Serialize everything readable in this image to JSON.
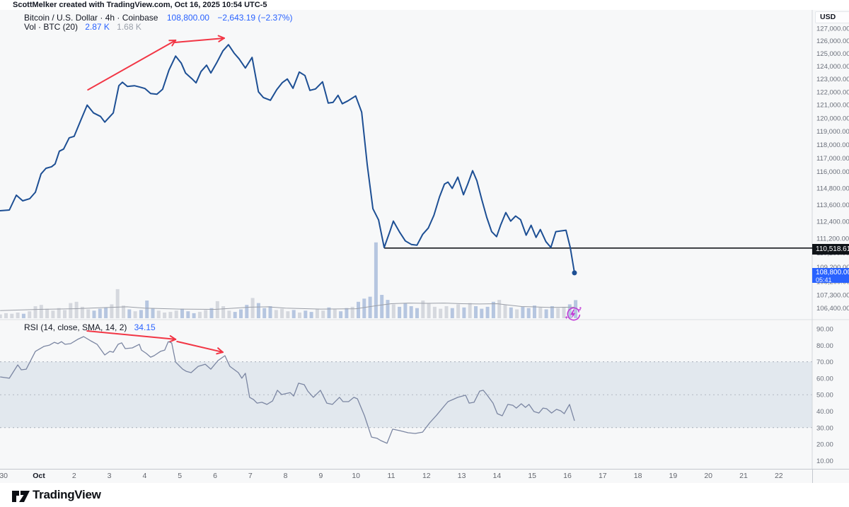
{
  "attribution": "ScottMelker created with TradingView.com, Oct 16, 2025 10:54 UTC-5",
  "symbol_header": {
    "title": "Bitcoin / U.S. Dollar · 4h · Coinbase",
    "price": "108,800.00",
    "change": "−2,643.19 (−2.37%)",
    "vol_label": "Vol · BTC (20)",
    "vol_value": "2.87 K",
    "vol_ma_value": "1.68 K"
  },
  "rsi_header": {
    "label": "RSI (14, close, SMA, 14, 2)",
    "value": "34.15"
  },
  "price_axis": {
    "currency": "USD",
    "line_label": "110,518.61",
    "last_label": "108,800.00",
    "countdown": "05:41"
  },
  "time_axis": [
    {
      "label": "30",
      "day": 0
    },
    {
      "label": "Oct",
      "day": 1,
      "bold": true
    },
    {
      "label": "2",
      "day": 2
    },
    {
      "label": "3",
      "day": 3
    },
    {
      "label": "4",
      "day": 4
    },
    {
      "label": "5",
      "day": 5
    },
    {
      "label": "6",
      "day": 6
    },
    {
      "label": "7",
      "day": 7
    },
    {
      "label": "8",
      "day": 8
    },
    {
      "label": "9",
      "day": 9
    },
    {
      "label": "10",
      "day": 10
    },
    {
      "label": "11",
      "day": 11
    },
    {
      "label": "12",
      "day": 12
    },
    {
      "label": "13",
      "day": 13
    },
    {
      "label": "14",
      "day": 14
    },
    {
      "label": "15",
      "day": 15
    },
    {
      "label": "16",
      "day": 16
    },
    {
      "label": "17",
      "day": 17
    },
    {
      "label": "18",
      "day": 18
    },
    {
      "label": "19",
      "day": 19
    },
    {
      "label": "20",
      "day": 20
    },
    {
      "label": "21",
      "day": 21
    },
    {
      "label": "22",
      "day": 22
    }
  ],
  "logo_text": "TradingView",
  "colors": {
    "accent_blue": "#2962FF",
    "price_line": "#1d4f94",
    "red_arrow": "#f23645",
    "rsi_line": "#7b86a2",
    "band_fill": "#9db1c7",
    "dash_line": "#a7adb8",
    "vol_up": "#d5d8de",
    "vol_down": "#b6c6e0",
    "vol_ma": "#9b9fa8",
    "black_line": "#16181d",
    "magenta_icon": "#c13bd6",
    "axis_text": "#696e79",
    "label_black_bg": "#0f1318"
  },
  "chart_data": [
    {
      "type": "line",
      "name": "BTC/USD close",
      "pane": "price",
      "x_unit": "days since Sep 30 00:00",
      "y_scale": "log",
      "y_ticks": [
        127000,
        126000,
        125000,
        124000,
        123000,
        122000,
        121000,
        120000,
        119000,
        118000,
        117000,
        116000,
        114800,
        113600,
        112400,
        111200,
        110200,
        109200,
        108200,
        107300,
        106400
      ],
      "points": [
        [
          -0.1,
          113160
        ],
        [
          0.16,
          113210
        ],
        [
          0.36,
          114280
        ],
        [
          0.54,
          113870
        ],
        [
          0.74,
          114030
        ],
        [
          0.9,
          114490
        ],
        [
          1.06,
          115830
        ],
        [
          1.2,
          116240
        ],
        [
          1.36,
          116350
        ],
        [
          1.46,
          116560
        ],
        [
          1.58,
          117500
        ],
        [
          1.7,
          117660
        ],
        [
          1.86,
          118500
        ],
        [
          2.0,
          118610
        ],
        [
          2.19,
          119840
        ],
        [
          2.37,
          120980
        ],
        [
          2.55,
          120380
        ],
        [
          2.75,
          120110
        ],
        [
          2.87,
          119680
        ],
        [
          3.11,
          120380
        ],
        [
          3.27,
          122470
        ],
        [
          3.37,
          122740
        ],
        [
          3.51,
          122410
        ],
        [
          3.71,
          122470
        ],
        [
          3.87,
          122360
        ],
        [
          4.01,
          122250
        ],
        [
          4.17,
          121870
        ],
        [
          4.35,
          121810
        ],
        [
          4.51,
          122190
        ],
        [
          4.69,
          123680
        ],
        [
          4.88,
          124790
        ],
        [
          5.04,
          124230
        ],
        [
          5.16,
          123460
        ],
        [
          5.34,
          123020
        ],
        [
          5.46,
          122690
        ],
        [
          5.6,
          123570
        ],
        [
          5.76,
          124070
        ],
        [
          5.88,
          123460
        ],
        [
          6.04,
          124230
        ],
        [
          6.22,
          125190
        ],
        [
          6.38,
          125690
        ],
        [
          6.54,
          125020
        ],
        [
          6.68,
          124570
        ],
        [
          6.86,
          123850
        ],
        [
          7.05,
          124680
        ],
        [
          7.23,
          122000
        ],
        [
          7.37,
          121560
        ],
        [
          7.57,
          121350
        ],
        [
          7.75,
          122160
        ],
        [
          7.91,
          122710
        ],
        [
          8.05,
          122990
        ],
        [
          8.21,
          122270
        ],
        [
          8.39,
          123530
        ],
        [
          8.55,
          123260
        ],
        [
          8.69,
          122110
        ],
        [
          8.85,
          122220
        ],
        [
          9.05,
          122770
        ],
        [
          9.21,
          121130
        ],
        [
          9.35,
          121190
        ],
        [
          9.49,
          121730
        ],
        [
          9.61,
          121080
        ],
        [
          9.77,
          121300
        ],
        [
          9.99,
          121680
        ],
        [
          10.16,
          120440
        ],
        [
          10.32,
          116480
        ],
        [
          10.48,
          113300
        ],
        [
          10.64,
          112500
        ],
        [
          10.8,
          110560
        ],
        [
          10.96,
          111670
        ],
        [
          11.06,
          112420
        ],
        [
          11.24,
          111620
        ],
        [
          11.4,
          111020
        ],
        [
          11.57,
          110770
        ],
        [
          11.73,
          110720
        ],
        [
          11.89,
          111470
        ],
        [
          12.05,
          111920
        ],
        [
          12.21,
          112830
        ],
        [
          12.37,
          114150
        ],
        [
          12.51,
          115080
        ],
        [
          12.61,
          115230
        ],
        [
          12.73,
          114770
        ],
        [
          12.89,
          115590
        ],
        [
          13.05,
          114310
        ],
        [
          13.17,
          115080
        ],
        [
          13.31,
          116060
        ],
        [
          13.43,
          115330
        ],
        [
          13.57,
          113950
        ],
        [
          13.71,
          112680
        ],
        [
          13.85,
          111670
        ],
        [
          13.99,
          111320
        ],
        [
          14.11,
          112170
        ],
        [
          14.25,
          113030
        ],
        [
          14.39,
          112420
        ],
        [
          14.53,
          112780
        ],
        [
          14.67,
          112520
        ],
        [
          14.83,
          111420
        ],
        [
          14.97,
          112120
        ],
        [
          15.11,
          111270
        ],
        [
          15.23,
          111820
        ],
        [
          15.39,
          110970
        ],
        [
          15.53,
          110560
        ],
        [
          15.67,
          111670
        ],
        [
          15.81,
          111720
        ],
        [
          15.96,
          111770
        ],
        [
          16.08,
          110560
        ],
        [
          16.2,
          108800
        ]
      ],
      "last_point": {
        "day": 16.2,
        "price": 108800
      },
      "hline": {
        "value": 110518.61,
        "from_day": 10.8
      },
      "arrows": [
        {
          "from": [
            2.39,
            122150
          ],
          "to": [
            4.88,
            126040
          ]
        },
        {
          "from": [
            4.86,
            125870
          ],
          "to": [
            6.26,
            126210
          ]
        }
      ]
    },
    {
      "type": "bar",
      "name": "Volume BTC (thousands)",
      "pane": "price-bottom",
      "start_day": -0.1,
      "bar_interval_days": 0.166667,
      "values": [
        0.6,
        0.8,
        0.7,
        0.9,
        0.7,
        1.1,
        1.9,
        2.1,
        1.5,
        1.2,
        1.6,
        1.3,
        2.4,
        2.6,
        1.8,
        1.4,
        1.2,
        1.5,
        1.7,
        2.2,
        4.6,
        2.0,
        1.4,
        1.1,
        1.3,
        2.8,
        1.6,
        1.2,
        0.9,
        1.0,
        1.2,
        1.5,
        1.1,
        0.8,
        1.0,
        1.3,
        1.6,
        2.7,
        1.9,
        1.2,
        1.0,
        1.4,
        2.1,
        3.2,
        2.4,
        1.6,
        1.9,
        1.3,
        1.5,
        1.1,
        1.3,
        0.9,
        1.2,
        1.0,
        1.4,
        1.2,
        1.7,
        1.4,
        1.1,
        1.6,
        1.8,
        2.6,
        3.1,
        3.4,
        12.0,
        3.7,
        2.9,
        2.2,
        1.8,
        2.4,
        1.9,
        1.6,
        2.8,
        2.3,
        1.8,
        1.5,
        1.9,
        1.6,
        2.2,
        1.7,
        2.4,
        1.9,
        1.5,
        1.8,
        2.6,
        2.9,
        2.1,
        1.7,
        1.4,
        1.8,
        1.6,
        2.0,
        1.7,
        1.4,
        1.9,
        1.6,
        1.8,
        2.2,
        2.87
      ],
      "ma_points": [
        [
          -0.1,
          1.2
        ],
        [
          1,
          1.4
        ],
        [
          2,
          1.5
        ],
        [
          3,
          1.7
        ],
        [
          3.5,
          1.8
        ],
        [
          4,
          1.6
        ],
        [
          5,
          1.45
        ],
        [
          6,
          1.4
        ],
        [
          7,
          1.75
        ],
        [
          7.5,
          1.8
        ],
        [
          8,
          1.6
        ],
        [
          9,
          1.45
        ],
        [
          10,
          1.5
        ],
        [
          10.6,
          2.0
        ],
        [
          11,
          2.3
        ],
        [
          11.5,
          2.4
        ],
        [
          12,
          2.35
        ],
        [
          12.5,
          2.4
        ],
        [
          13,
          2.3
        ],
        [
          13.5,
          2.25
        ],
        [
          14,
          2.3
        ],
        [
          14.3,
          2.1
        ],
        [
          14.7,
          1.85
        ],
        [
          15,
          1.8
        ],
        [
          15.5,
          1.7
        ],
        [
          16.2,
          1.75
        ]
      ],
      "current_value_k": 2.87,
      "ma_value_k": 1.68
    },
    {
      "type": "line",
      "name": "RSI (14)",
      "pane": "rsi",
      "y_ticks": [
        90,
        80,
        70,
        60,
        50,
        40,
        30,
        20,
        10
      ],
      "bands": {
        "upper": 70,
        "middle": 50,
        "lower": 30
      },
      "points": [
        [
          -0.1,
          60.8
        ],
        [
          0.16,
          60.0
        ],
        [
          0.4,
          68.1
        ],
        [
          0.5,
          65.1
        ],
        [
          0.64,
          65.5
        ],
        [
          0.9,
          76.3
        ],
        [
          1.14,
          79.3
        ],
        [
          1.3,
          80.1
        ],
        [
          1.44,
          81.8
        ],
        [
          1.54,
          81.0
        ],
        [
          1.64,
          82.2
        ],
        [
          1.74,
          80.6
        ],
        [
          1.9,
          81.0
        ],
        [
          2.1,
          83.6
        ],
        [
          2.27,
          85.3
        ],
        [
          2.47,
          82.7
        ],
        [
          2.65,
          80.6
        ],
        [
          2.87,
          74.1
        ],
        [
          3.01,
          76.3
        ],
        [
          3.11,
          75.8
        ],
        [
          3.25,
          80.6
        ],
        [
          3.35,
          81.5
        ],
        [
          3.45,
          78.0
        ],
        [
          3.65,
          78.4
        ],
        [
          3.85,
          80.6
        ],
        [
          3.91,
          77.1
        ],
        [
          4.05,
          75.0
        ],
        [
          4.17,
          72.8
        ],
        [
          4.27,
          73.7
        ],
        [
          4.45,
          76.3
        ],
        [
          4.57,
          77.1
        ],
        [
          4.67,
          82.2
        ],
        [
          4.77,
          81.4
        ],
        [
          4.88,
          69.8
        ],
        [
          5.08,
          65.5
        ],
        [
          5.18,
          64.2
        ],
        [
          5.32,
          63.4
        ],
        [
          5.52,
          67.2
        ],
        [
          5.72,
          68.5
        ],
        [
          5.88,
          65.5
        ],
        [
          6.08,
          70.7
        ],
        [
          6.28,
          73.7
        ],
        [
          6.42,
          67.2
        ],
        [
          6.66,
          63.4
        ],
        [
          6.76,
          60.0
        ],
        [
          6.86,
          63.0
        ],
        [
          6.98,
          48.4
        ],
        [
          7.09,
          47.1
        ],
        [
          7.19,
          44.9
        ],
        [
          7.33,
          45.4
        ],
        [
          7.47,
          44.1
        ],
        [
          7.63,
          46.2
        ],
        [
          7.77,
          52.7
        ],
        [
          7.89,
          50.1
        ],
        [
          8.13,
          51.3
        ],
        [
          8.23,
          49.2
        ],
        [
          8.37,
          57.0
        ],
        [
          8.53,
          56.1
        ],
        [
          8.63,
          52.2
        ],
        [
          8.79,
          48.4
        ],
        [
          8.99,
          52.7
        ],
        [
          9.17,
          44.9
        ],
        [
          9.33,
          44.1
        ],
        [
          9.53,
          48.4
        ],
        [
          9.63,
          45.8
        ],
        [
          9.79,
          45.8
        ],
        [
          9.94,
          48.4
        ],
        [
          10.04,
          47.5
        ],
        [
          10.24,
          37.2
        ],
        [
          10.44,
          24.3
        ],
        [
          10.6,
          23.5
        ],
        [
          10.7,
          22.2
        ],
        [
          10.88,
          20.5
        ],
        [
          11.04,
          29.1
        ],
        [
          11.24,
          28.2
        ],
        [
          11.48,
          26.9
        ],
        [
          11.68,
          26.5
        ],
        [
          11.89,
          27.3
        ],
        [
          12.09,
          32.9
        ],
        [
          12.29,
          37.6
        ],
        [
          12.49,
          42.8
        ],
        [
          12.61,
          45.8
        ],
        [
          12.75,
          47.1
        ],
        [
          12.89,
          48.4
        ],
        [
          13.11,
          49.7
        ],
        [
          13.21,
          44.9
        ],
        [
          13.35,
          45.4
        ],
        [
          13.51,
          52.2
        ],
        [
          13.61,
          52.7
        ],
        [
          13.71,
          50.1
        ],
        [
          13.89,
          44.9
        ],
        [
          14.01,
          38.5
        ],
        [
          14.15,
          37.2
        ],
        [
          14.31,
          44.1
        ],
        [
          14.45,
          43.6
        ],
        [
          14.55,
          41.9
        ],
        [
          14.69,
          44.5
        ],
        [
          14.81,
          42.3
        ],
        [
          14.91,
          44.1
        ],
        [
          15.05,
          39.8
        ],
        [
          15.19,
          38.9
        ],
        [
          15.31,
          41.9
        ],
        [
          15.41,
          41.5
        ],
        [
          15.55,
          38.9
        ],
        [
          15.69,
          41.1
        ],
        [
          15.81,
          40.2
        ],
        [
          15.91,
          38.5
        ],
        [
          16.06,
          44.1
        ],
        [
          16.2,
          34.15
        ]
      ],
      "arrows": [
        {
          "from": [
            2.37,
            88.7
          ],
          "to": [
            4.88,
            83.6
          ]
        },
        {
          "from": [
            4.92,
            82.3
          ],
          "to": [
            6.22,
            75.8
          ]
        }
      ],
      "current": 34.15
    }
  ]
}
